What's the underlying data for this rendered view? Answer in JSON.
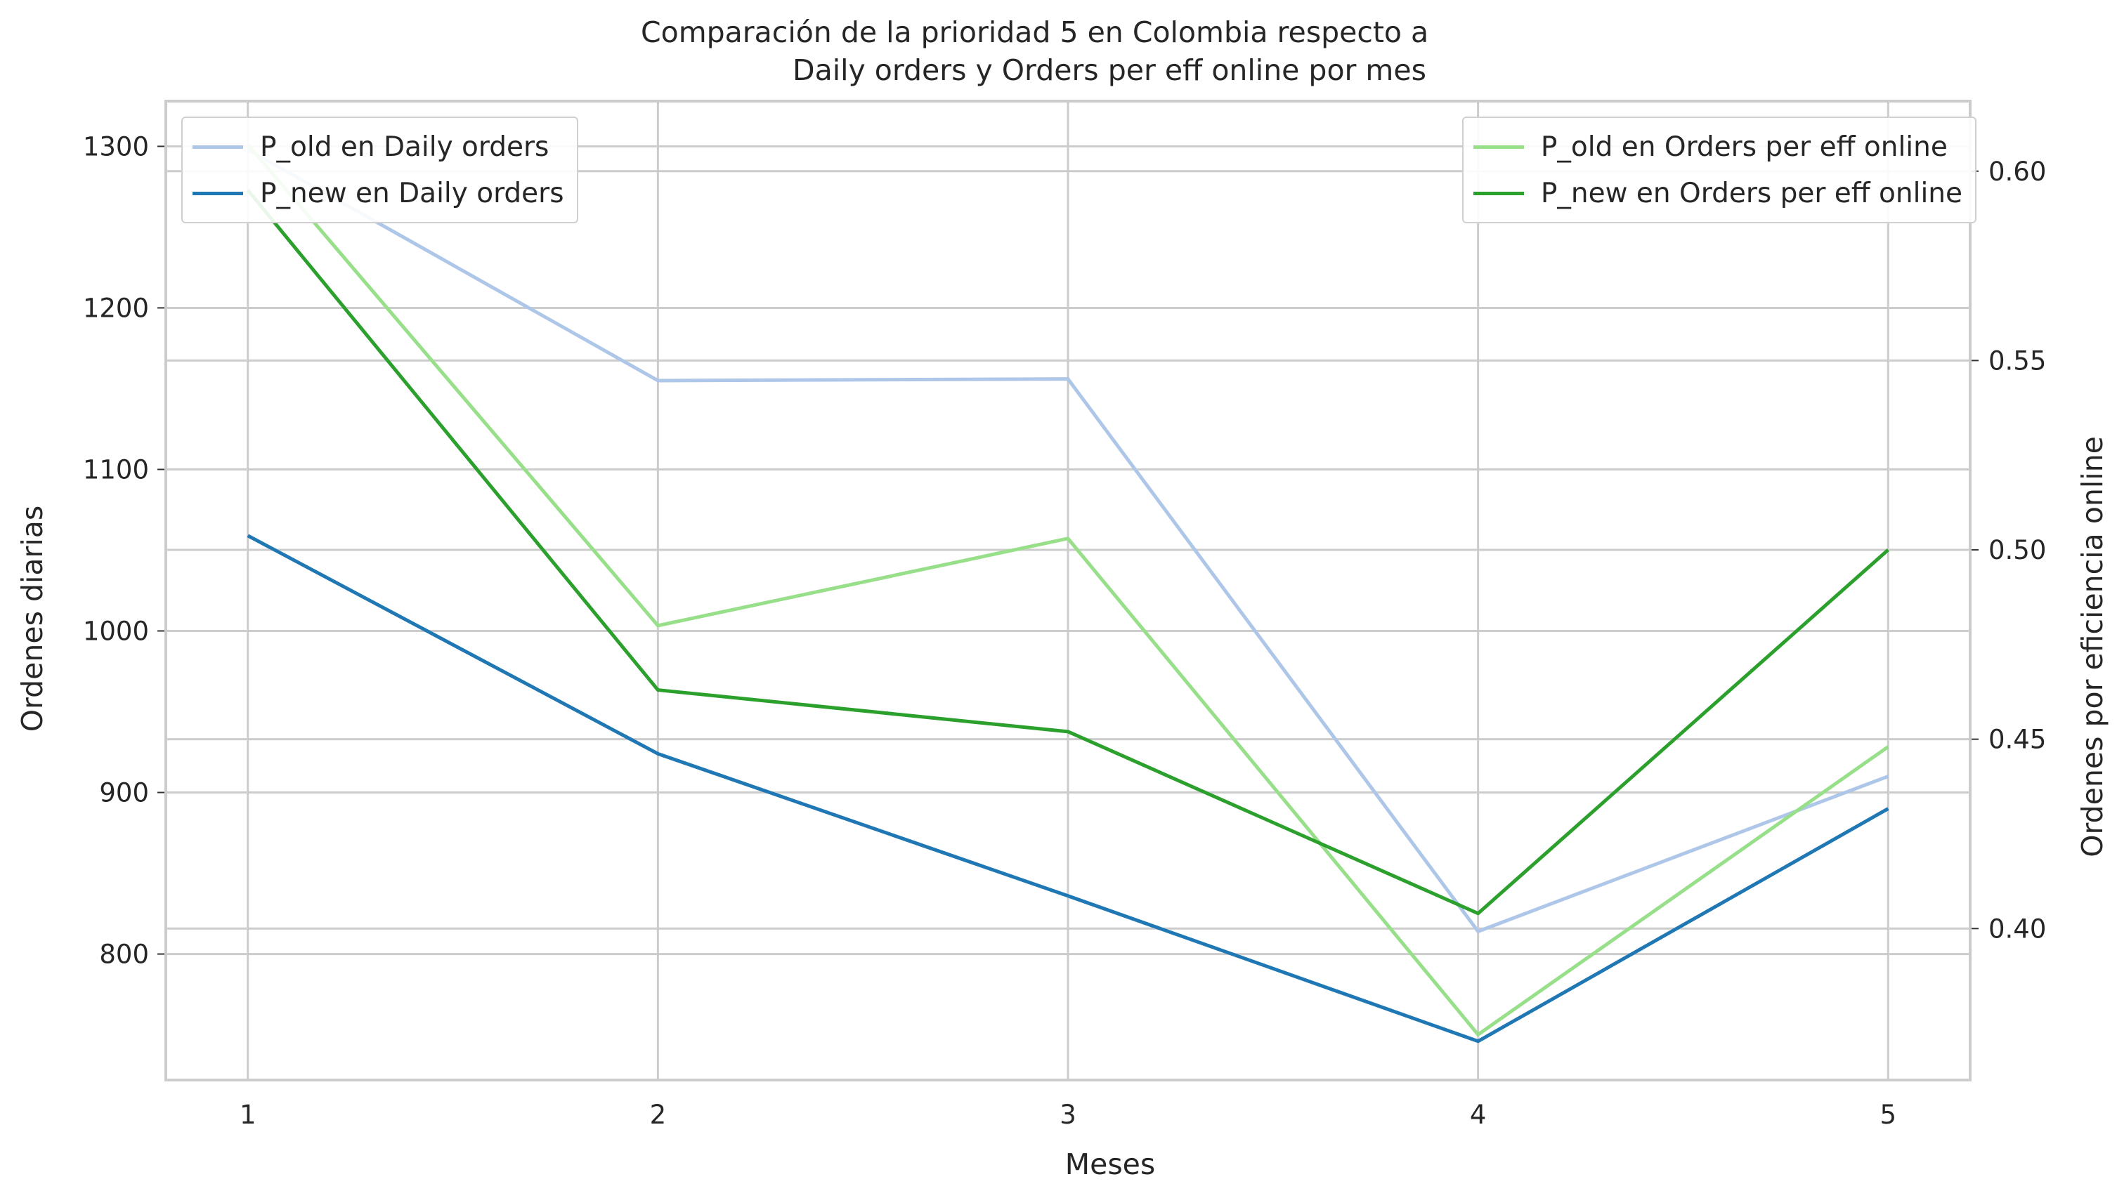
{
  "title": {
    "line1": "Comparación de la prioridad 5 en Colombia respecto a",
    "line2": "Daily orders y Orders per eff online por mes"
  },
  "chart_data": {
    "type": "line",
    "xlabel": "Meses",
    "ylabel_left": "Ordenes diarias",
    "ylabel_right": "Ordenes por eficiencia online",
    "x": [
      1,
      2,
      3,
      4,
      5
    ],
    "xlim": [
      0.8,
      5.2
    ],
    "ylim_left": [
      722,
      1328
    ],
    "ylim_right": [
      0.36,
      0.6185
    ],
    "yticks_left": [
      800,
      900,
      1000,
      1100,
      1200,
      1300
    ],
    "yticks_right": [
      0.4,
      0.45,
      0.5,
      0.55,
      0.6
    ],
    "yticks_right_labels": [
      "0.40",
      "0.45",
      "0.50",
      "0.55",
      "0.60"
    ],
    "grid": true,
    "series_left": [
      {
        "name": "P_old en Daily orders",
        "color": "#aec7e8",
        "values": [
          1298,
          1155,
          1156,
          814,
          910
        ]
      },
      {
        "name": "P_new en Daily orders",
        "color": "#1f77b4",
        "values": [
          1059,
          924,
          836,
          746,
          890
        ]
      }
    ],
    "series_right": [
      {
        "name": "P_old en Orders per eff online",
        "color": "#98df8a",
        "values": [
          0.607,
          0.48,
          0.503,
          0.372,
          0.448
        ]
      },
      {
        "name": "P_new en Orders per eff online",
        "color": "#2ca02c",
        "values": [
          0.595,
          0.463,
          0.452,
          0.404,
          0.5
        ]
      }
    ],
    "legend_left_placement": "top-left",
    "legend_right_placement": "top-right"
  }
}
